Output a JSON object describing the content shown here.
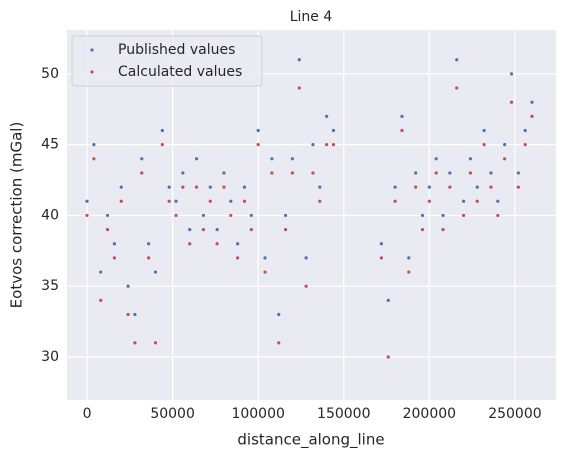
{
  "chart_data": {
    "type": "scatter",
    "title": "Line 4",
    "x_label": "distance_along_line",
    "y_label": "Eotvos correction (mGal)",
    "x": [
      0,
      4000,
      8000,
      12000,
      16000,
      20000,
      24000,
      28000,
      32000,
      36000,
      40000,
      44000,
      48000,
      52000,
      56000,
      60000,
      64000,
      68000,
      72000,
      76000,
      80000,
      84000,
      88000,
      92000,
      96000,
      100000,
      104000,
      108000,
      112000,
      116000,
      120000,
      124000,
      128000,
      132000,
      136000,
      140000,
      144000,
      172000,
      176000,
      180000,
      184000,
      188000,
      192000,
      196000,
      200000,
      204000,
      208000,
      212000,
      216000,
      220000,
      224000,
      228000,
      232000,
      236000,
      240000,
      244000,
      248000,
      252000,
      256000,
      260000
    ],
    "series": [
      {
        "name": "Published values",
        "color": "#4c72b0",
        "values": [
          41,
          45,
          36,
          40,
          38,
          42,
          35,
          33,
          44,
          38,
          36,
          46,
          42,
          41,
          43,
          39,
          44,
          40,
          42,
          39,
          43,
          41,
          38,
          42,
          40,
          46,
          37,
          44,
          33,
          40,
          44,
          51,
          37,
          45,
          42,
          47,
          46,
          38,
          34,
          42,
          47,
          37,
          43,
          40,
          42,
          44,
          40,
          43,
          51,
          41,
          44,
          42,
          46,
          43,
          41,
          45,
          50,
          43,
          46,
          48
        ]
      },
      {
        "name": "Calculated values",
        "color": "#c44e52",
        "values": [
          40,
          44,
          34,
          39,
          37,
          41,
          33,
          31,
          43,
          37,
          31,
          45,
          41,
          40,
          42,
          38,
          42,
          39,
          41,
          38,
          42,
          40,
          37,
          41,
          39,
          45,
          36,
          43,
          31,
          39,
          43,
          49,
          35,
          43,
          41,
          45,
          45,
          37,
          30,
          41,
          46,
          36,
          42,
          39,
          41,
          43,
          39,
          42,
          49,
          40,
          43,
          41,
          45,
          42,
          40,
          44,
          48,
          42,
          45,
          47
        ]
      }
    ],
    "xlim": [
      -11700,
      274000
    ],
    "ylim": [
      26.96,
      53.1
    ],
    "xticks": [
      0,
      50000,
      100000,
      150000,
      200000,
      250000
    ],
    "yticks": [
      30,
      35,
      40,
      45,
      50
    ],
    "grid": true,
    "legend": "upper left"
  }
}
